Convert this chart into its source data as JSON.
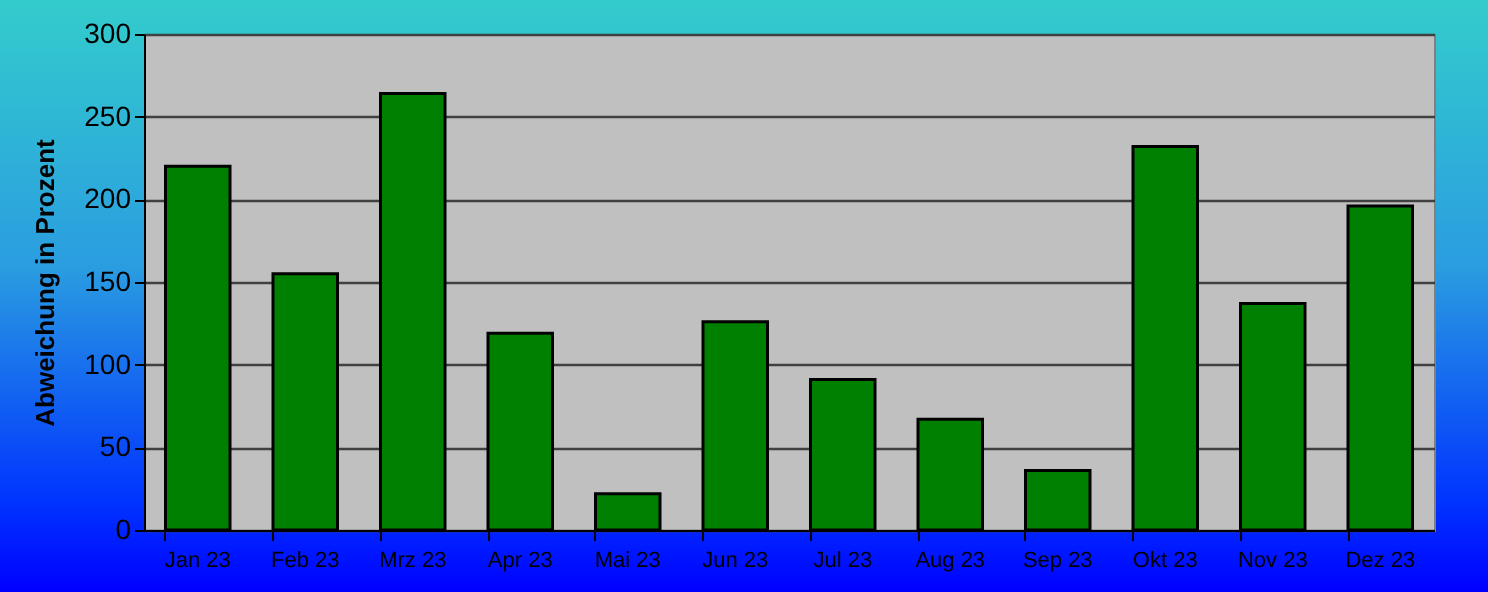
{
  "chart_data": {
    "type": "bar",
    "ylabel": "Abweichung in Prozent",
    "categories": [
      "Jan 23",
      "Feb 23",
      "Mrz 23",
      "Apr 23",
      "Mai 23",
      "Jun 23",
      "Jul 23",
      "Aug 23",
      "Sep 23",
      "Okt 23",
      "Nov 23",
      "Dez 23"
    ],
    "values": [
      220,
      155,
      264,
      119,
      22,
      126,
      91,
      67,
      36,
      232,
      137,
      196
    ],
    "color": "#008000",
    "ylim": [
      0,
      300
    ],
    "yticks": [
      0,
      50,
      100,
      150,
      200,
      250,
      300
    ],
    "grid": "y"
  }
}
